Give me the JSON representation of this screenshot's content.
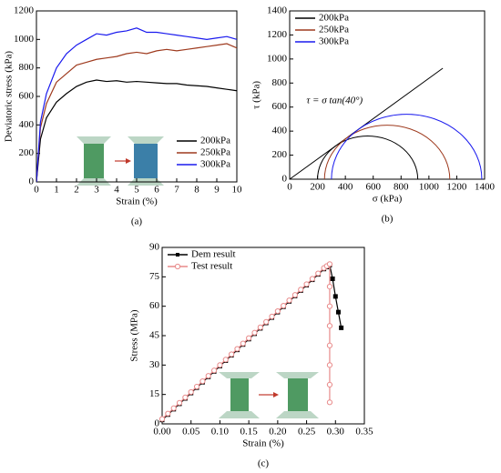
{
  "chart_data": [
    {
      "type": "line",
      "panel_label": "(a)",
      "xlabel": "Strain (%)",
      "ylabel": "Deviatoric stress (kPa)",
      "x": [
        0,
        0.2,
        0.5,
        1,
        1.5,
        2,
        2.5,
        3,
        3.5,
        4,
        4.5,
        5,
        5.5,
        6,
        6.5,
        7,
        7.5,
        8,
        8.5,
        9,
        9.5,
        10
      ],
      "series": [
        {
          "name": "200kPa",
          "color": "#000000",
          "values": [
            0,
            300,
            450,
            560,
            620,
            670,
            700,
            715,
            705,
            710,
            700,
            705,
            700,
            695,
            690,
            690,
            680,
            675,
            670,
            660,
            650,
            640
          ]
        },
        {
          "name": "250kPa",
          "color": "#9e3a1e",
          "values": [
            0,
            380,
            550,
            700,
            760,
            820,
            840,
            860,
            870,
            880,
            900,
            910,
            900,
            920,
            930,
            920,
            930,
            940,
            950,
            960,
            970,
            940
          ]
        },
        {
          "name": "300kPa",
          "color": "#1a1aee",
          "values": [
            0,
            420,
            620,
            800,
            900,
            960,
            1000,
            1040,
            1030,
            1050,
            1060,
            1080,
            1050,
            1050,
            1040,
            1030,
            1020,
            1010,
            1000,
            1010,
            1020,
            1000
          ]
        }
      ],
      "xlim": [
        0,
        10
      ],
      "xticks": [
        0,
        1,
        2,
        3,
        4,
        5,
        6,
        7,
        8,
        9,
        10
      ],
      "ylim": [
        0,
        1200
      ],
      "yticks": [
        0,
        200,
        400,
        600,
        800,
        1000,
        1200
      ],
      "legend": "lower right"
    },
    {
      "type": "mohr",
      "panel_label": "(b)",
      "xlabel": "σ (kPa)",
      "ylabel": "τ (kPa)",
      "annotation": "τ = σ tan(40°)",
      "envelope": {
        "x": [
          0,
          1100
        ],
        "y": [
          0,
          923
        ]
      },
      "series": [
        {
          "name": "200kPa",
          "color": "#000000",
          "values": [
            200,
            920
          ]
        },
        {
          "name": "250kPa",
          "color": "#9e3a1e",
          "values": [
            250,
            1150
          ]
        },
        {
          "name": "300kPa",
          "color": "#1a1aee",
          "values": [
            300,
            1380
          ]
        }
      ],
      "xlim": [
        0,
        1400
      ],
      "xticks": [
        0,
        200,
        400,
        600,
        800,
        1000,
        1200,
        1400
      ],
      "ylim": [
        0,
        1400
      ],
      "yticks": [
        0,
        200,
        400,
        600,
        800,
        1000,
        1200,
        1400
      ],
      "legend": "upper left"
    },
    {
      "type": "line",
      "panel_label": "(c)",
      "xlabel": "Strain (%)",
      "ylabel": "Stress (MPa)",
      "series": [
        {
          "name": "Dem result",
          "color": "#000000",
          "marker": "square",
          "x": [
            0,
            0.01,
            0.02,
            0.03,
            0.04,
            0.05,
            0.06,
            0.07,
            0.08,
            0.09,
            0.1,
            0.11,
            0.12,
            0.13,
            0.14,
            0.15,
            0.16,
            0.17,
            0.18,
            0.19,
            0.2,
            0.21,
            0.22,
            0.23,
            0.24,
            0.25,
            0.26,
            0.27,
            0.28,
            0.285,
            0.29,
            0.295,
            0.3,
            0.305,
            0.31
          ],
          "values": [
            2,
            4.75,
            7.5,
            10.25,
            13,
            15.75,
            18.5,
            21.25,
            24,
            26.75,
            29.5,
            32.25,
            35,
            37.75,
            40.5,
            43.25,
            46,
            48.75,
            51.5,
            54.25,
            57,
            59.75,
            62.5,
            65.25,
            68,
            70.75,
            73.5,
            76.25,
            79,
            80,
            81,
            74,
            65,
            57,
            49
          ]
        },
        {
          "name": "Test result",
          "color": "#e88a8a",
          "marker": "circle",
          "x": [
            0,
            0.01,
            0.02,
            0.03,
            0.04,
            0.05,
            0.06,
            0.07,
            0.08,
            0.09,
            0.1,
            0.11,
            0.12,
            0.13,
            0.14,
            0.15,
            0.16,
            0.17,
            0.18,
            0.19,
            0.2,
            0.21,
            0.22,
            0.23,
            0.24,
            0.25,
            0.26,
            0.27,
            0.28,
            0.285,
            0.29,
            0.29,
            0.29,
            0.29,
            0.29,
            0.29,
            0.29,
            0.29
          ],
          "values": [
            2.5,
            5.25,
            8,
            10.75,
            13.5,
            16.25,
            19,
            21.75,
            24.5,
            27.25,
            30,
            32.75,
            35.5,
            38.25,
            41,
            43.75,
            46.5,
            49.25,
            52,
            54.75,
            57.5,
            60.25,
            63,
            65.75,
            68.5,
            71.25,
            74,
            76.75,
            79.5,
            80.5,
            81.5,
            70,
            60,
            50,
            40,
            30,
            20,
            11
          ]
        }
      ],
      "xlim": [
        0,
        0.35
      ],
      "xticks": [
        {
          "value": 0,
          "label": "0.00"
        },
        {
          "value": 0.05,
          "label": "0.05"
        },
        {
          "value": 0.1,
          "label": "0.10"
        },
        {
          "value": 0.15,
          "label": "0.15"
        },
        {
          "value": 0.2,
          "label": "0.20"
        },
        {
          "value": 0.25,
          "label": "0.25"
        },
        {
          "value": 0.3,
          "label": "0.30"
        },
        {
          "value": 0.35,
          "label": "0.35"
        }
      ],
      "ylim": [
        0,
        90
      ],
      "yticks": [
        0,
        15,
        30,
        45,
        60,
        75,
        90
      ],
      "legend": "upper left"
    }
  ]
}
